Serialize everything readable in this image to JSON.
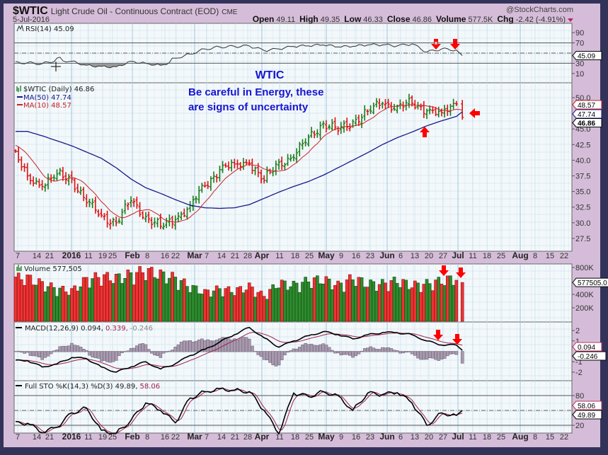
{
  "header": {
    "symbol": "$WTIC",
    "name": "Light Crude Oil - Continuous Contract (EOD)",
    "exchange": "CME",
    "date": "5-Jul-2016",
    "copyright": "@StockCharts.com",
    "open_label": "Open",
    "open": "49.11",
    "high_label": "High",
    "high": "49.35",
    "low_label": "Low",
    "low": "46.33",
    "close_label": "Close",
    "close": "46.86",
    "volume_label": "Volume",
    "volume": "577.5K",
    "chg_label": "Chg",
    "chg": "-2.42 (-4.91%)",
    "chg_direction": "down"
  },
  "annotations": {
    "title": "WTIC",
    "line1": "Be careful in Energy, these",
    "line2": "are signs of uncertainty",
    "arrow_color": "#ff0000"
  },
  "colors": {
    "up": "#1a7a1a",
    "down": "#dd1111",
    "ma50": "#1a1a8a",
    "ma10": "#cc2222",
    "background": "#d5bdd9",
    "plot": "#f3f8fb",
    "grid": "#c3dce8",
    "text_annotation": "#1515d0"
  },
  "panels": {
    "rsi": {
      "legend": "RSI(14) 45.09",
      "flag": "45.09",
      "ticks": [
        "90",
        "70",
        "50",
        "30",
        "10"
      ]
    },
    "price": {
      "legend": "$WTIC (Daily) 46.86",
      "ma50_legend": "MA(50) 47.74",
      "ma10_legend": "MA(10) 48.57",
      "flags": {
        "ma10": "48.57",
        "ma50": "47.74",
        "close": "46.86"
      },
      "ticks": [
        "50.0",
        "47.5",
        "45.0",
        "42.5",
        "40.0",
        "37.5",
        "35.0",
        "32.5",
        "30.0",
        "27.5"
      ]
    },
    "volume": {
      "legend": "Volume 577,505",
      "flag": "577505.0",
      "ticks": [
        "800K",
        "400K",
        "200K"
      ]
    },
    "macd": {
      "legend_main": "MACD(12,26,9) 0.094,",
      "legend_signal": "0.339,",
      "legend_hist": "-0.246",
      "flags": {
        "macd": "0.094",
        "hist": "-0.246"
      },
      "ticks": [
        "2",
        "1",
        "-1",
        "-2"
      ]
    },
    "sto": {
      "legend_main": "Full STO %K(14,3) %D(3) 49.89,",
      "legend_d": "58.06",
      "flags": {
        "d": "58.06",
        "k": "49.89"
      },
      "ticks": [
        "80",
        "20"
      ]
    }
  },
  "date_axis": [
    {
      "t": "7"
    },
    {
      "t": "14"
    },
    {
      "t": "21"
    },
    {
      "t": "2016",
      "b": true
    },
    {
      "t": "11"
    },
    {
      "t": "19"
    },
    {
      "t": "25"
    },
    {
      "t": "Feb",
      "b": true
    },
    {
      "t": "8"
    },
    {
      "t": "16"
    },
    {
      "t": "22"
    },
    {
      "t": "Mar",
      "b": true
    },
    {
      "t": "7"
    },
    {
      "t": "14"
    },
    {
      "t": "21"
    },
    {
      "t": "28"
    },
    {
      "t": "Apr",
      "b": true
    },
    {
      "t": "11"
    },
    {
      "t": "18"
    },
    {
      "t": "25"
    },
    {
      "t": "May",
      "b": true
    },
    {
      "t": "9"
    },
    {
      "t": "16"
    },
    {
      "t": "23"
    },
    {
      "t": "Jun",
      "b": true
    },
    {
      "t": "6"
    },
    {
      "t": "13"
    },
    {
      "t": "20"
    },
    {
      "t": "27"
    },
    {
      "t": "Jul",
      "b": true
    },
    {
      "t": "11"
    },
    {
      "t": "18"
    },
    {
      "t": "25"
    },
    {
      "t": "Aug",
      "b": true
    },
    {
      "t": "8"
    },
    {
      "t": "15"
    },
    {
      "t": "22"
    }
  ],
  "chart_data": {
    "type": "ohlc",
    "frequency_note": "weekly closes read from daily bar chart",
    "weeks": [
      "2015-12-07",
      "2015-12-14",
      "2015-12-21",
      "2015-12-28",
      "2016-01-04",
      "2016-01-11",
      "2016-01-19",
      "2016-01-25",
      "2016-02-01",
      "2016-02-08",
      "2016-02-16",
      "2016-02-22",
      "2016-02-29",
      "2016-03-07",
      "2016-03-14",
      "2016-03-21",
      "2016-03-28",
      "2016-04-04",
      "2016-04-11",
      "2016-04-18",
      "2016-04-25",
      "2016-05-02",
      "2016-05-09",
      "2016-05-16",
      "2016-05-23",
      "2016-05-31",
      "2016-06-06",
      "2016-06-13",
      "2016-06-20",
      "2016-06-27",
      "2016-07-05"
    ],
    "first_open": 41.5,
    "close": [
      37.5,
      35.8,
      37.8,
      37.0,
      33.2,
      31.2,
      30.0,
      33.5,
      31.0,
      29.4,
      30.5,
      32.8,
      35.9,
      38.5,
      39.4,
      39.5,
      36.8,
      39.7,
      40.4,
      43.7,
      45.9,
      44.7,
      46.2,
      47.8,
      49.1,
      48.6,
      49.1,
      47.9,
      47.6,
      48.99,
      46.86
    ],
    "ma50": [
      44.6,
      43.9,
      43.1,
      42.3,
      41.3,
      40.3,
      38.8,
      37.0,
      35.6,
      34.7,
      33.7,
      32.8,
      32.4,
      32.3,
      32.4,
      32.9,
      33.9,
      34.9,
      35.8,
      36.6,
      37.6,
      38.8,
      40.0,
      41.2,
      42.5,
      43.6,
      44.5,
      45.5,
      46.3,
      47.0,
      47.74
    ],
    "volume_k": [
      600,
      520,
      450,
      420,
      580,
      620,
      600,
      650,
      700,
      650,
      600,
      480,
      400,
      450,
      420,
      480,
      350,
      530,
      500,
      560,
      580,
      500,
      600,
      520,
      520,
      560,
      500,
      520,
      560,
      600,
      577.505
    ],
    "rsi": [
      35,
      33,
      40,
      38,
      30,
      28,
      27,
      38,
      34,
      30,
      40,
      48,
      58,
      62,
      63,
      64,
      55,
      58,
      63,
      64,
      66,
      62,
      63,
      66,
      66,
      64,
      68,
      52,
      58,
      56,
      45.09
    ],
    "macd": [
      -0.9,
      -1.5,
      -1.2,
      -0.6,
      -0.7,
      -1.5,
      -2.0,
      -1.5,
      -1.0,
      -1.7,
      -1.2,
      -0.4,
      0.2,
      0.9,
      1.6,
      2.3,
      1.3,
      0.4,
      1.0,
      1.5,
      1.9,
      1.6,
      1.2,
      1.6,
      1.8,
      1.8,
      1.6,
      1.0,
      0.6,
      0.6,
      0.094
    ],
    "sto_k": [
      24,
      5,
      16,
      45,
      55,
      10,
      4,
      30,
      65,
      50,
      25,
      75,
      88,
      94,
      91,
      88,
      50,
      3,
      85,
      78,
      88,
      80,
      50,
      85,
      82,
      86,
      65,
      20,
      45,
      40,
      49.89
    ],
    "ylim_price": [
      26,
      52
    ],
    "ylim_rsi": [
      0,
      100
    ],
    "ylim_volume_k": [
      0,
      850
    ],
    "ylim_macd": [
      -2.8,
      2.8
    ],
    "ylim_sto": [
      0,
      100
    ],
    "grid": true
  }
}
